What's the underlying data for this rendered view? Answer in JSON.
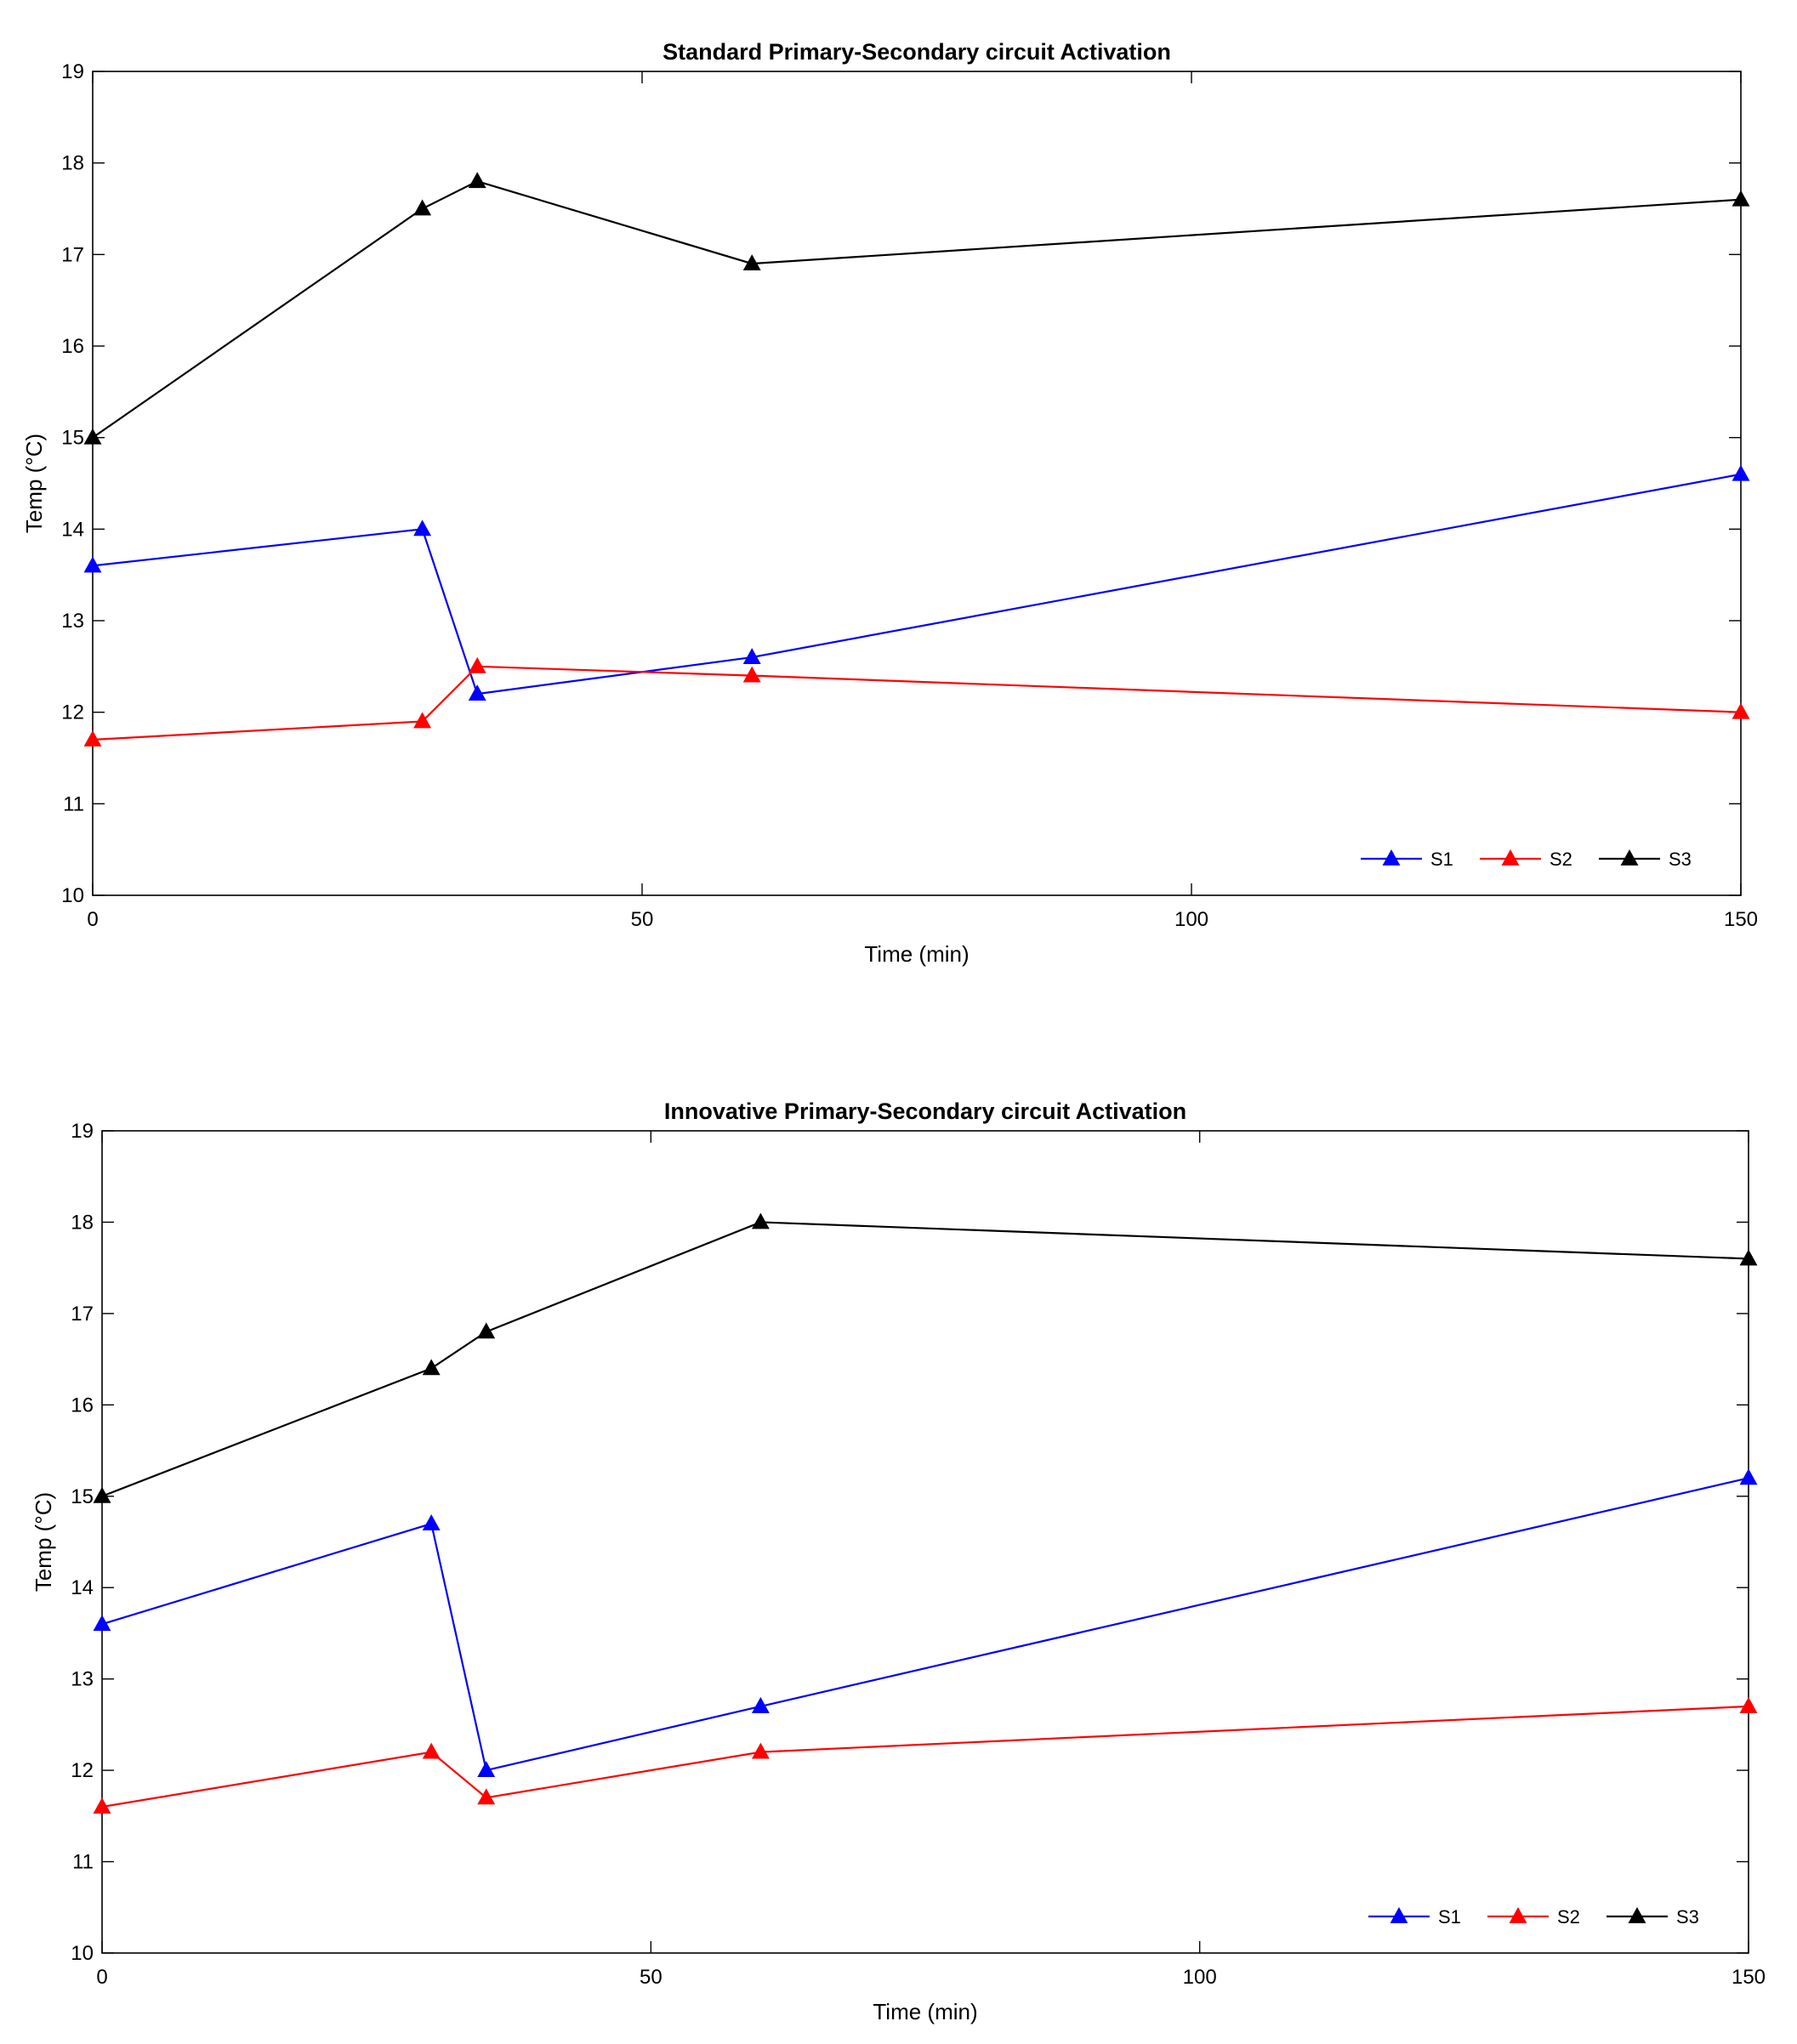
{
  "chart_data": [
    {
      "type": "line",
      "title": "Standard Primary-Secondary circuit Activation",
      "xlabel": "Time (min)",
      "ylabel": "Temp (°C)",
      "xlim": [
        0,
        150
      ],
      "ylim": [
        10,
        19
      ],
      "xticks": [
        0,
        50,
        100,
        150
      ],
      "yticks": [
        10,
        11,
        12,
        13,
        14,
        15,
        16,
        17,
        18,
        19
      ],
      "grid": false,
      "legend_position": "bottom-right",
      "x": [
        0,
        30,
        35,
        60,
        150
      ],
      "series": [
        {
          "name": "S1",
          "color": "#0000ff",
          "marker": "triangle",
          "values": [
            13.6,
            14.0,
            12.2,
            12.6,
            14.6
          ]
        },
        {
          "name": "S2",
          "color": "#ff0000",
          "marker": "triangle",
          "values": [
            11.7,
            11.9,
            12.5,
            12.4,
            12.0
          ]
        },
        {
          "name": "S3",
          "color": "#000000",
          "marker": "triangle",
          "values": [
            15.0,
            17.5,
            17.8,
            16.9,
            17.6
          ]
        }
      ]
    },
    {
      "type": "line",
      "title": "Innovative Primary-Secondary circuit Activation",
      "xlabel": "Time (min)",
      "ylabel": "Temp (°C)",
      "xlim": [
        0,
        150
      ],
      "ylim": [
        10,
        19
      ],
      "xticks": [
        0,
        50,
        100,
        150
      ],
      "yticks": [
        10,
        11,
        12,
        13,
        14,
        15,
        16,
        17,
        18,
        19
      ],
      "grid": false,
      "legend_position": "bottom-right",
      "x": [
        0,
        30,
        35,
        60,
        150
      ],
      "series": [
        {
          "name": "S1",
          "color": "#0000ff",
          "marker": "triangle",
          "values": [
            13.6,
            14.7,
            12.0,
            12.7,
            15.2
          ]
        },
        {
          "name": "S2",
          "color": "#ff0000",
          "marker": "triangle",
          "values": [
            11.6,
            12.2,
            11.7,
            12.2,
            12.7
          ]
        },
        {
          "name": "S3",
          "color": "#000000",
          "marker": "triangle",
          "values": [
            15.0,
            16.4,
            16.8,
            18.0,
            17.6
          ]
        }
      ]
    }
  ]
}
